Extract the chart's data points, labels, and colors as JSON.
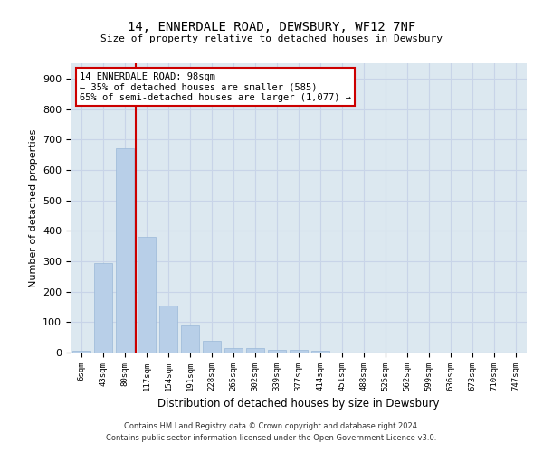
{
  "title": "14, ENNERDALE ROAD, DEWSBURY, WF12 7NF",
  "subtitle": "Size of property relative to detached houses in Dewsbury",
  "xlabel": "Distribution of detached houses by size in Dewsbury",
  "ylabel": "Number of detached properties",
  "categories": [
    "6sqm",
    "43sqm",
    "80sqm",
    "117sqm",
    "154sqm",
    "191sqm",
    "228sqm",
    "265sqm",
    "302sqm",
    "339sqm",
    "377sqm",
    "414sqm",
    "451sqm",
    "488sqm",
    "525sqm",
    "562sqm",
    "599sqm",
    "636sqm",
    "673sqm",
    "710sqm",
    "747sqm"
  ],
  "values": [
    6,
    295,
    670,
    380,
    155,
    90,
    40,
    15,
    15,
    10,
    10,
    5,
    0,
    0,
    0,
    0,
    0,
    0,
    0,
    0,
    0
  ],
  "bar_color": "#b8cfe8",
  "bar_edge_color": "#9ab8d8",
  "vline_x_idx": 2.5,
  "vline_color": "#cc0000",
  "annotation_text": "14 ENNERDALE ROAD: 98sqm\n← 35% of detached houses are smaller (585)\n65% of semi-detached houses are larger (1,077) →",
  "annotation_box_color": "#cc0000",
  "annotation_bg_color": "#ffffff",
  "grid_color": "#c8d4e8",
  "bg_color": "#dce8f0",
  "ylim": [
    0,
    950
  ],
  "yticks": [
    0,
    100,
    200,
    300,
    400,
    500,
    600,
    700,
    800,
    900
  ],
  "footnote1": "Contains HM Land Registry data © Crown copyright and database right 2024.",
  "footnote2": "Contains public sector information licensed under the Open Government Licence v3.0."
}
